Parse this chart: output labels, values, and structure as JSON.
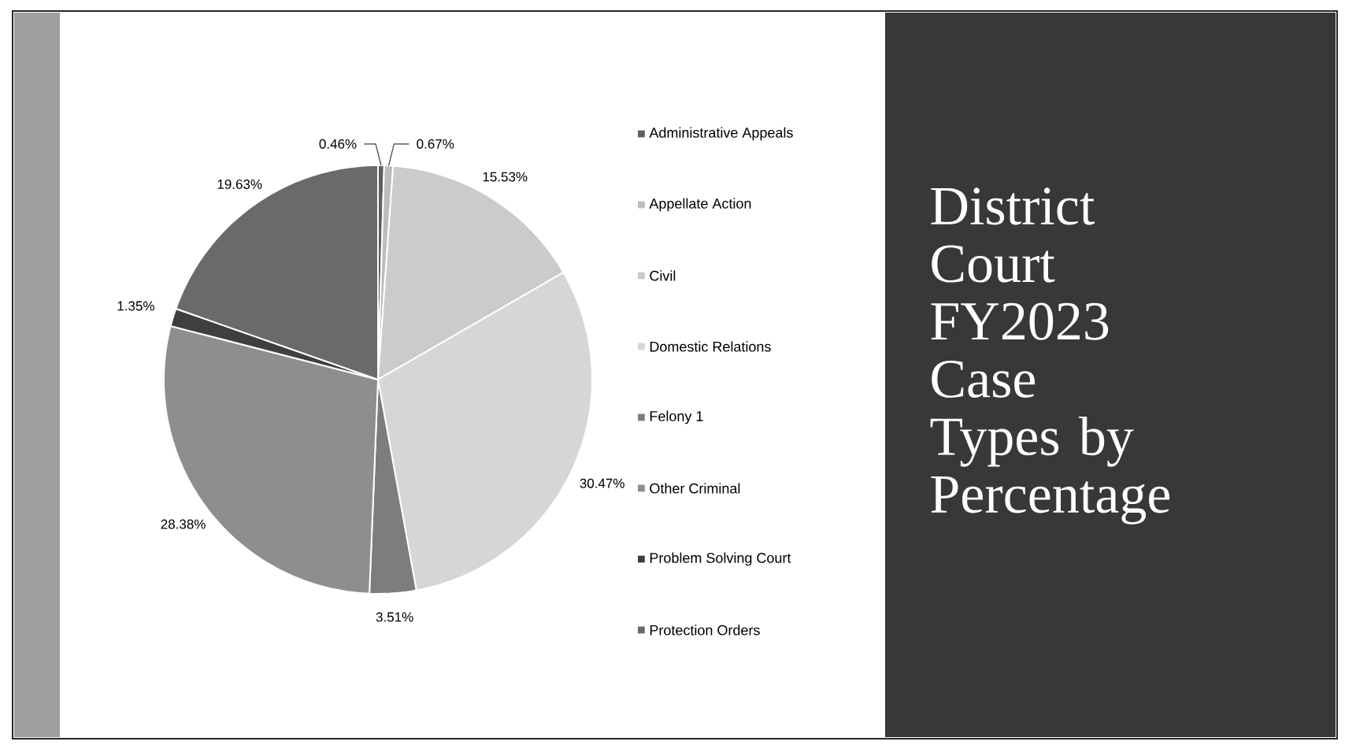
{
  "chart_data": {
    "type": "pie",
    "title": "District Court FY2023 Case Types by Percentage",
    "categories": [
      "Administrative Appeals",
      "Appellate Action",
      "Civil",
      "Domestic Relations",
      "Felony 1",
      "Other Criminal",
      "Problem Solving Court",
      "Protection Orders"
    ],
    "values": [
      0.46,
      0.67,
      15.53,
      30.47,
      3.51,
      28.38,
      1.35,
      19.63
    ],
    "value_labels": [
      "0.46%",
      "0.67%",
      "15.53%",
      "30.47%",
      "3.51%",
      "28.38%",
      "1.35%",
      "19.63%"
    ],
    "colors": [
      "#5f5f5f",
      "#bdbdbd",
      "#cbcbcb",
      "#d6d6d6",
      "#7d7d7d",
      "#8e8e8e",
      "#3f3f3f",
      "#6a6a6a"
    ],
    "legend": "right"
  }
}
